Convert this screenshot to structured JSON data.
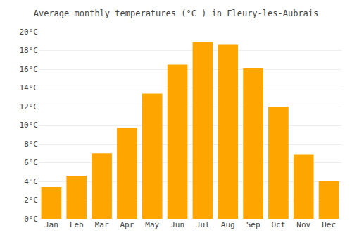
{
  "chart_data": {
    "type": "bar",
    "title": "Average monthly temperatures (°C ) in Fleury-les-Aubrais",
    "categories": [
      "Jan",
      "Feb",
      "Mar",
      "Apr",
      "May",
      "Jun",
      "Jul",
      "Aug",
      "Sep",
      "Oct",
      "Nov",
      "Dec"
    ],
    "values": [
      3.4,
      4.6,
      7.0,
      9.7,
      13.4,
      16.5,
      18.9,
      18.6,
      16.1,
      12.0,
      6.9,
      4.0
    ],
    "color": "#FFA500",
    "ylim": [
      0,
      20
    ],
    "yticks": [
      {
        "value": 0,
        "label": "0°C"
      },
      {
        "value": 2,
        "label": "2°C"
      },
      {
        "value": 4,
        "label": "4°C"
      },
      {
        "value": 6,
        "label": "6°C"
      },
      {
        "value": 8,
        "label": "8°C"
      },
      {
        "value": 10,
        "label": "10°C"
      },
      {
        "value": 12,
        "label": "12°C"
      },
      {
        "value": 14,
        "label": "14°C"
      },
      {
        "value": 16,
        "label": "16°C"
      },
      {
        "value": 18,
        "label": "18°C"
      },
      {
        "value": 20,
        "label": "20°C"
      }
    ],
    "grid": true
  }
}
